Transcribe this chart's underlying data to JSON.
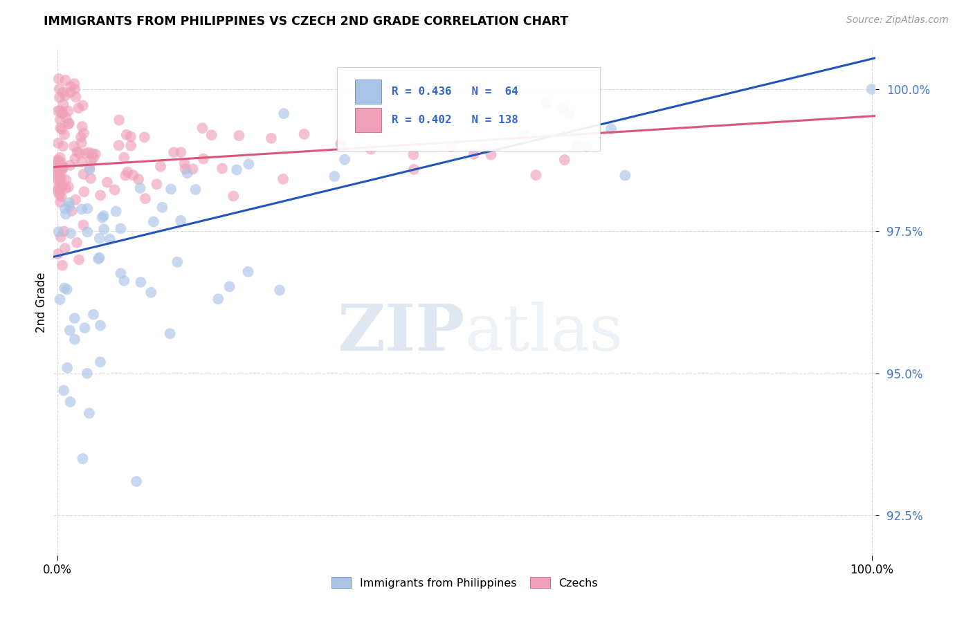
{
  "title": "IMMIGRANTS FROM PHILIPPINES VS CZECH 2ND GRADE CORRELATION CHART",
  "source": "Source: ZipAtlas.com",
  "ylabel": "2nd Grade",
  "y_min": 91.8,
  "y_max": 100.7,
  "x_min": -0.005,
  "x_max": 1.005,
  "blue_color": "#aac4e8",
  "pink_color": "#f0a0b8",
  "blue_line_color": "#2255bb",
  "pink_line_color": "#dd5577",
  "legend_text_color": "#3366cc",
  "ytick_color": "#4477cc",
  "watermark_color": "#d0dff0",
  "background_color": "#ffffff",
  "grid_color": "#cccccc",
  "blue_line_y0": 97.05,
  "blue_line_y1": 100.55,
  "pink_line_y0": 98.63,
  "pink_line_y1": 99.53
}
